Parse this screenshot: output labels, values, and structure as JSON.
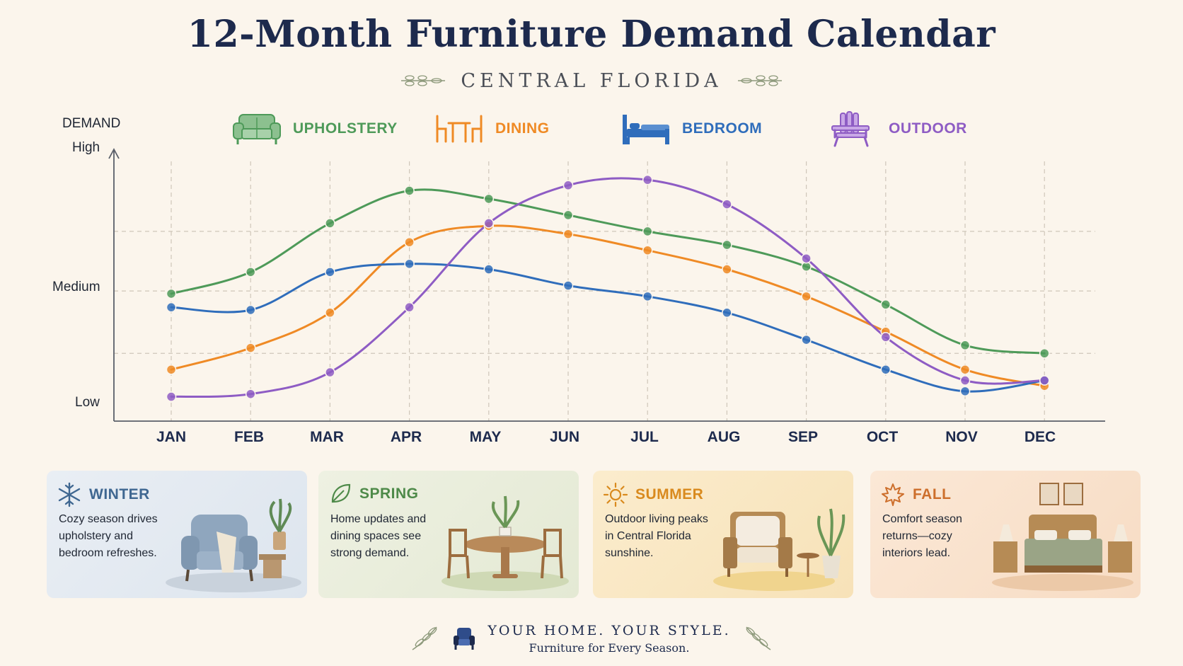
{
  "header": {
    "title": "12-Month Furniture Demand Calendar",
    "subtitle": "CENTRAL FLORIDA"
  },
  "legend": [
    {
      "label": "UPHOLSTERY",
      "icon": "sofa-icon",
      "color": "#4e9a59"
    },
    {
      "label": "DINING",
      "icon": "dining-set-icon",
      "color": "#ef8a25"
    },
    {
      "label": "BEDROOM",
      "icon": "bed-icon",
      "color": "#2f6dbb"
    },
    {
      "label": "OUTDOOR",
      "icon": "adirondack-chair-icon",
      "color": "#8e5cc4"
    }
  ],
  "axis": {
    "title": "DEMAND",
    "high": "High",
    "medium": "Medium",
    "low": "Low"
  },
  "chart_data": {
    "type": "line",
    "categories": [
      "JAN",
      "FEB",
      "MAR",
      "APR",
      "MAY",
      "JUN",
      "JUL",
      "AUG",
      "SEP",
      "OCT",
      "NOV",
      "DEC"
    ],
    "y_scale": "qualitative demand, 0 = Low, 10 = High",
    "ylabel": "DEMAND",
    "ylim": [
      0,
      10
    ],
    "y_ticks": {
      "Low": 0.9,
      "Medium": 5.1,
      "High": 9.3
    },
    "grid": true,
    "series": [
      {
        "name": "UPHOLSTERY",
        "color": "#4e9a59",
        "values": [
          4.7,
          5.5,
          7.3,
          8.5,
          8.2,
          7.6,
          7.0,
          6.5,
          5.7,
          4.3,
          2.8,
          2.5
        ]
      },
      {
        "name": "DINING",
        "color": "#ef8a25",
        "values": [
          1.9,
          2.7,
          4.0,
          6.6,
          7.2,
          6.9,
          6.3,
          5.6,
          4.6,
          3.3,
          1.9,
          1.3
        ]
      },
      {
        "name": "BEDROOM",
        "color": "#2f6dbb",
        "values": [
          4.2,
          4.1,
          5.5,
          5.8,
          5.6,
          5.0,
          4.6,
          4.0,
          3.0,
          1.9,
          1.1,
          1.5
        ]
      },
      {
        "name": "OUTDOOR",
        "color": "#8e5cc4",
        "values": [
          0.9,
          1.0,
          1.8,
          4.2,
          7.3,
          8.7,
          8.9,
          8.0,
          6.0,
          3.1,
          1.5,
          1.5
        ]
      }
    ]
  },
  "seasons": [
    {
      "name": "WINTER",
      "icon": "snowflake-icon",
      "color": "#3f6791",
      "desc": "Cozy season drives upholstery and bedroom refreshes."
    },
    {
      "name": "SPRING",
      "icon": "leaf-icon",
      "color": "#4e8a49",
      "desc": "Home updates and dining spaces see strong demand."
    },
    {
      "name": "SUMMER",
      "icon": "sun-icon",
      "color": "#d98a1e",
      "desc": "Outdoor living peaks in Central Florida sunshine."
    },
    {
      "name": "FALL",
      "icon": "maple-leaf-icon",
      "color": "#cd6f2c",
      "desc": "Comfort season returns—cozy interiors lead."
    }
  ],
  "footer": {
    "line1": "YOUR HOME. YOUR STYLE.",
    "line2": "Furniture for Every Season.",
    "icon": "armchair-icon"
  }
}
